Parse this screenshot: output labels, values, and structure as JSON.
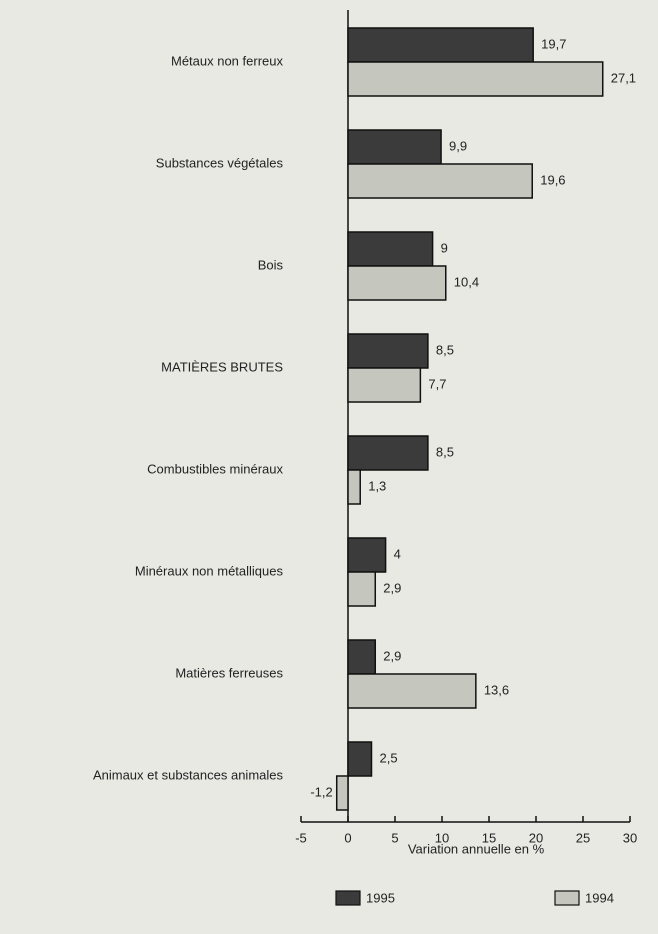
{
  "chart_data": {
    "type": "bar",
    "orientation": "horizontal",
    "categories": [
      "Métaux non ferreux",
      "Substances végétales",
      "Bois",
      "MATIÈRES BRUTES",
      "Combustibles minéraux",
      "Minéraux non métalliques",
      "Matières ferreuses",
      "Animaux et substances animales"
    ],
    "series": [
      {
        "name": "1995",
        "color": "#3b3b3b",
        "values": [
          19.7,
          9.9,
          9,
          8.5,
          8.5,
          4,
          2.9,
          2.5
        ],
        "value_labels": [
          "19,7",
          "9,9",
          "9",
          "8,5",
          "8,5",
          "4",
          "2,9",
          "2,5"
        ]
      },
      {
        "name": "1994",
        "color": "#c5c7bf",
        "values": [
          27.1,
          19.6,
          10.4,
          7.7,
          1.3,
          2.9,
          13.6,
          -1.2
        ],
        "value_labels": [
          "27,1",
          "19,6",
          "10,4",
          "7,7",
          "1,3",
          "2,9",
          "13,6",
          "-1,2"
        ]
      }
    ],
    "xlabel": "Variation annuelle en %",
    "xlim": [
      -5,
      30
    ],
    "xticks": [
      -5,
      0,
      5,
      10,
      15,
      20,
      25,
      30
    ]
  }
}
